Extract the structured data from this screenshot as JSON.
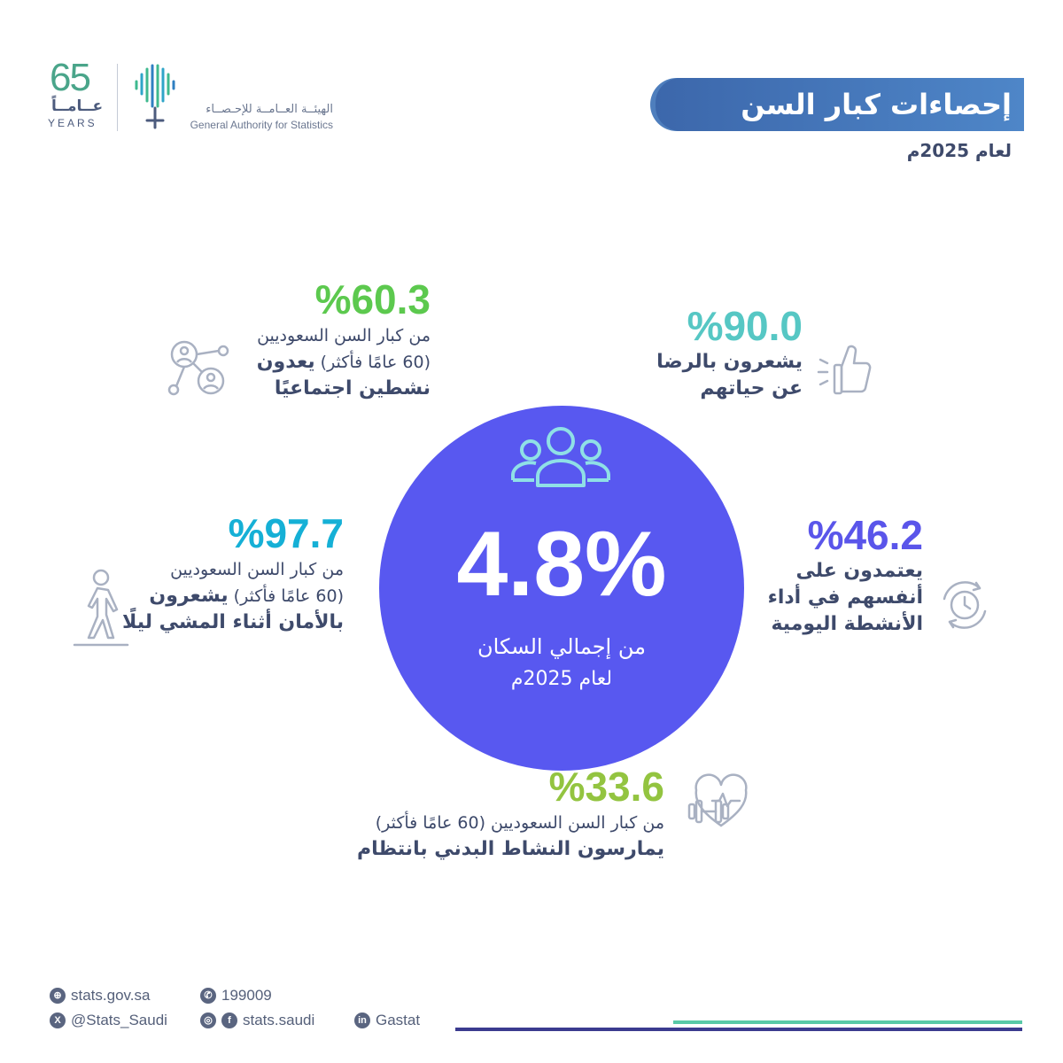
{
  "branding": {
    "anniversary_number": "65",
    "anniversary_ar": "عــامــاً",
    "anniversary_en": "YEARS",
    "org_name_ar": "الهيئــة العــامــة للإحـصــاء",
    "org_name_en": "General Authority for Statistics"
  },
  "header": {
    "title": "إحصاءات كبار السن",
    "subtitle": "لعام 2025م"
  },
  "center": {
    "value": "4.8%",
    "label": "من إجمالي السكان",
    "year": "لعام 2025م",
    "icon": "people-group-icon"
  },
  "stats": {
    "social": {
      "value": "%60.3",
      "line1": "من كبار السن السعوديين",
      "line2_normal": "(60 عامًا فأكثر) ",
      "line2_bold": "يعدون",
      "line3": "نشطين اجتماعيًا",
      "color": "#5cc94e",
      "icon": "social-network-icon"
    },
    "satisfaction": {
      "value": "%90.0",
      "line1": "يشعرون بالرضا",
      "line2": "عن حياتهم",
      "color": "#56c7c4",
      "icon": "thumbs-up-icon"
    },
    "safety": {
      "value": "%97.7",
      "line1": "من كبار السن السعوديين",
      "line2_normal": "(60 عامًا فأكثر) ",
      "line2_bold": "يشعرون",
      "line3": "بالأمان أثناء المشي ليلًا",
      "color": "#15b0d6",
      "icon": "walking-person-icon"
    },
    "independence": {
      "value": "%46.2",
      "line1": "يعتمدون على",
      "line2": "أنفسهم في أداء",
      "line3": "الأنشطة اليومية",
      "color": "#5a55ea",
      "icon": "clock-cycle-icon"
    },
    "activity": {
      "value": "%33.6",
      "line1": "من كبار السن السعوديين (60 عامًا فأكثر)",
      "line2": "يمارسون النشاط البدني بانتظام",
      "color": "#93c440",
      "icon": "heart-dumbbell-icon"
    }
  },
  "footer": {
    "website": "stats.gov.sa",
    "phone": "199009",
    "x_handle": "@Stats_Saudi",
    "social_handle": "stats.saudi",
    "linkedin": "Gastat"
  }
}
